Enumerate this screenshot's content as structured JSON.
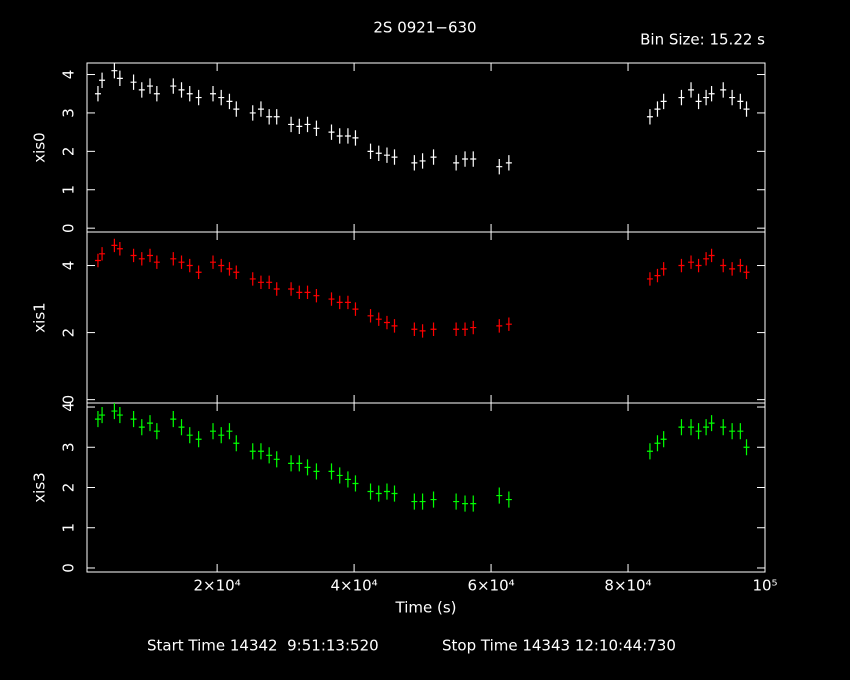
{
  "page": {
    "title": "2S 0921−630",
    "bin_size": "Bin Size: 15.22 s",
    "start_time": "Start Time 14342  9:51:13:520",
    "stop_time": "Stop Time 14343 12:10:44:730"
  },
  "chart_data": [
    {
      "type": "scatter",
      "ylabel": "xis0",
      "color": "#ffffff",
      "error": 0.2,
      "xlim": [
        1000,
        100000
      ],
      "ylim": [
        -0.1,
        4.3
      ],
      "yticks": [
        0,
        1,
        2,
        3,
        4
      ],
      "x": [
        2600,
        3200,
        5000,
        5800,
        7800,
        9000,
        10200,
        11200,
        13600,
        14800,
        16000,
        17300,
        19400,
        20600,
        21800,
        22800,
        25200,
        26400,
        27600,
        28700,
        30800,
        32000,
        33200,
        34500,
        36700,
        37900,
        39100,
        40200,
        42400,
        43600,
        44800,
        45900,
        48800,
        50000,
        51600,
        54900,
        56200,
        57400,
        61200,
        62600,
        83200,
        84300,
        85200,
        87800,
        89200,
        90300,
        91400,
        92200,
        93900,
        95200,
        96400,
        97300
      ],
      "values": [
        3.5,
        3.85,
        4.1,
        3.9,
        3.8,
        3.6,
        3.7,
        3.5,
        3.7,
        3.6,
        3.5,
        3.4,
        3.5,
        3.4,
        3.3,
        3.1,
        3.0,
        3.1,
        2.9,
        2.9,
        2.7,
        2.65,
        2.7,
        2.6,
        2.5,
        2.4,
        2.4,
        2.35,
        2.0,
        1.95,
        1.9,
        1.85,
        1.7,
        1.75,
        1.85,
        1.7,
        1.8,
        1.8,
        1.6,
        1.7,
        2.9,
        3.1,
        3.3,
        3.4,
        3.6,
        3.3,
        3.4,
        3.5,
        3.6,
        3.4,
        3.3,
        3.1
      ]
    },
    {
      "type": "scatter",
      "ylabel": "xis1",
      "color": "#ff0000",
      "error": 0.2,
      "xlim": [
        1000,
        100000
      ],
      "ylim": [
        -0.1,
        5
      ],
      "yticks": [
        0,
        2,
        4
      ],
      "x": [
        2600,
        3200,
        5000,
        5800,
        7800,
        9000,
        10200,
        11200,
        13600,
        14800,
        16000,
        17300,
        19400,
        20600,
        21800,
        22800,
        25200,
        26400,
        27600,
        28700,
        30800,
        32000,
        33200,
        34500,
        36700,
        37900,
        39100,
        40200,
        42400,
        43600,
        44800,
        45900,
        48800,
        50000,
        51600,
        54900,
        56200,
        57400,
        61200,
        62600,
        83200,
        84300,
        85200,
        87800,
        89200,
        90300,
        91400,
        92200,
        93900,
        95200,
        96400,
        97300
      ],
      "values": [
        4.15,
        4.35,
        4.6,
        4.5,
        4.3,
        4.2,
        4.3,
        4.1,
        4.2,
        4.1,
        4.0,
        3.8,
        4.1,
        4.0,
        3.9,
        3.8,
        3.6,
        3.5,
        3.5,
        3.3,
        3.3,
        3.2,
        3.2,
        3.1,
        3.0,
        2.9,
        2.9,
        2.7,
        2.5,
        2.4,
        2.3,
        2.2,
        2.1,
        2.05,
        2.1,
        2.1,
        2.1,
        2.15,
        2.2,
        2.25,
        3.6,
        3.7,
        3.9,
        4.0,
        4.1,
        4.0,
        4.2,
        4.3,
        4.0,
        3.9,
        4.0,
        3.8
      ]
    },
    {
      "type": "scatter",
      "ylabel": "xis3",
      "color": "#00ff00",
      "error": 0.2,
      "xlim": [
        1000,
        100000
      ],
      "ylim": [
        -0.1,
        4.1
      ],
      "yticks": [
        0,
        1,
        2,
        3,
        4
      ],
      "xlabel": "Time (s)",
      "xticks": [
        {
          "value": 20000,
          "label": "2×10⁴"
        },
        {
          "value": 40000,
          "label": "4×10⁴"
        },
        {
          "value": 60000,
          "label": "6×10⁴"
        },
        {
          "value": 80000,
          "label": "8×10⁴"
        },
        {
          "value": 100000,
          "label": "10⁵"
        }
      ],
      "x": [
        2600,
        3200,
        5000,
        5800,
        7800,
        9000,
        10200,
        11200,
        13600,
        14800,
        16000,
        17300,
        19400,
        20600,
        21800,
        22800,
        25200,
        26400,
        27600,
        28700,
        30800,
        32000,
        33200,
        34500,
        36700,
        37900,
        39100,
        40200,
        42400,
        43600,
        44800,
        45900,
        48800,
        50000,
        51600,
        54900,
        56200,
        57400,
        61200,
        62600,
        83200,
        84300,
        85200,
        87800,
        89200,
        90300,
        91400,
        92200,
        93900,
        95200,
        96400,
        97300
      ],
      "values": [
        3.7,
        3.8,
        3.9,
        3.8,
        3.7,
        3.5,
        3.6,
        3.4,
        3.7,
        3.5,
        3.3,
        3.2,
        3.4,
        3.3,
        3.4,
        3.1,
        2.9,
        2.9,
        2.8,
        2.7,
        2.6,
        2.6,
        2.5,
        2.4,
        2.4,
        2.3,
        2.2,
        2.1,
        1.9,
        1.85,
        1.9,
        1.85,
        1.65,
        1.65,
        1.7,
        1.65,
        1.6,
        1.6,
        1.8,
        1.7,
        2.9,
        3.1,
        3.2,
        3.5,
        3.5,
        3.4,
        3.5,
        3.6,
        3.5,
        3.4,
        3.4,
        3.0
      ]
    }
  ]
}
